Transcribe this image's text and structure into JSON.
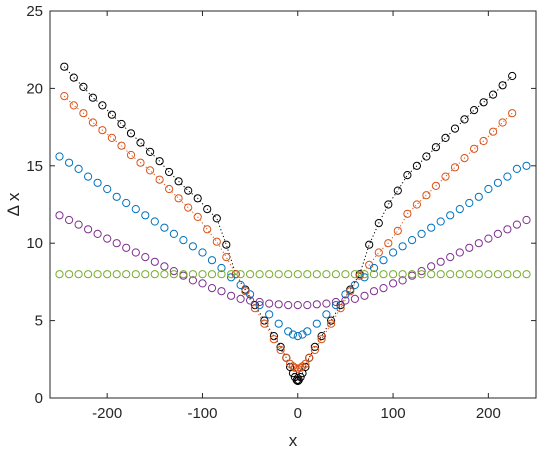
{
  "chart_data": {
    "type": "scatter",
    "xlabel": "x",
    "ylabel": "Δ x",
    "xlim": [
      -260,
      250
    ],
    "ylim": [
      0,
      25
    ],
    "xticks": [
      -200,
      -100,
      0,
      100,
      200
    ],
    "yticks": [
      0,
      5,
      10,
      15,
      20,
      25
    ],
    "xtick_labels": [
      "-200",
      "-100",
      "0",
      "100",
      "200"
    ],
    "ytick_labels": [
      "0",
      "5",
      "10",
      "15",
      "20",
      "25"
    ],
    "grid": false,
    "legend": "none",
    "series": [
      {
        "color": "#000000",
        "marker": "circle",
        "line": "dotted",
        "points": [
          [
            -245,
            21.4
          ],
          [
            -235,
            20.7
          ],
          [
            -225,
            20.1
          ],
          [
            -215,
            19.4
          ],
          [
            -205,
            18.9
          ],
          [
            -195,
            18.3
          ],
          [
            -185,
            17.7
          ],
          [
            -175,
            17.1
          ],
          [
            -165,
            16.5
          ],
          [
            -155,
            15.9
          ],
          [
            -145,
            15.3
          ],
          [
            -135,
            14.6
          ],
          [
            -125,
            14.0
          ],
          [
            -115,
            13.4
          ],
          [
            -105,
            12.9
          ],
          [
            -95,
            12.2
          ],
          [
            -85,
            11.6
          ],
          [
            -75,
            9.9
          ],
          [
            -65,
            8.0
          ],
          [
            -55,
            7.0
          ],
          [
            -45,
            6.0
          ],
          [
            -35,
            5.0
          ],
          [
            -25,
            4.0
          ],
          [
            -18,
            3.3
          ],
          [
            -12,
            2.6
          ],
          [
            -8,
            2.0
          ],
          [
            -5,
            1.6
          ],
          [
            -3,
            1.35
          ],
          [
            -1,
            1.15
          ],
          [
            0,
            1.1
          ],
          [
            1,
            1.15
          ],
          [
            3,
            1.35
          ],
          [
            5,
            1.6
          ],
          [
            8,
            2.0
          ],
          [
            12,
            2.6
          ],
          [
            18,
            3.3
          ],
          [
            25,
            4.0
          ],
          [
            35,
            5.0
          ],
          [
            45,
            6.0
          ],
          [
            55,
            7.0
          ],
          [
            65,
            8.0
          ],
          [
            75,
            9.9
          ],
          [
            85,
            11.3
          ],
          [
            95,
            12.5
          ],
          [
            105,
            13.4
          ],
          [
            115,
            14.4
          ],
          [
            125,
            15.0
          ],
          [
            135,
            15.6
          ],
          [
            145,
            16.2
          ],
          [
            155,
            16.8
          ],
          [
            165,
            17.4
          ],
          [
            175,
            18.0
          ],
          [
            185,
            18.6
          ],
          [
            195,
            19.1
          ],
          [
            205,
            19.6
          ],
          [
            215,
            20.2
          ],
          [
            225,
            20.8
          ]
        ]
      },
      {
        "color": "#D95319",
        "marker": "circle",
        "line": "dotted",
        "points": [
          [
            -245,
            19.5
          ],
          [
            -235,
            18.9
          ],
          [
            -225,
            18.4
          ],
          [
            -215,
            17.8
          ],
          [
            -205,
            17.3
          ],
          [
            -195,
            16.8
          ],
          [
            -185,
            16.3
          ],
          [
            -175,
            15.7
          ],
          [
            -165,
            15.2
          ],
          [
            -155,
            14.7
          ],
          [
            -145,
            14.1
          ],
          [
            -135,
            13.5
          ],
          [
            -125,
            12.9
          ],
          [
            -115,
            12.3
          ],
          [
            -105,
            11.7
          ],
          [
            -95,
            10.9
          ],
          [
            -85,
            10.1
          ],
          [
            -75,
            9.1
          ],
          [
            -65,
            8.0
          ],
          [
            -55,
            6.9
          ],
          [
            -45,
            5.8
          ],
          [
            -35,
            4.8
          ],
          [
            -25,
            3.8
          ],
          [
            -18,
            3.1
          ],
          [
            -12,
            2.6
          ],
          [
            -8,
            2.2
          ],
          [
            -5,
            2.05
          ],
          [
            -3,
            1.95
          ],
          [
            0,
            1.9
          ],
          [
            3,
            1.95
          ],
          [
            5,
            2.05
          ],
          [
            8,
            2.2
          ],
          [
            12,
            2.6
          ],
          [
            18,
            3.1
          ],
          [
            25,
            3.8
          ],
          [
            35,
            4.8
          ],
          [
            45,
            5.8
          ],
          [
            55,
            6.9
          ],
          [
            65,
            7.9
          ],
          [
            75,
            8.6
          ],
          [
            85,
            9.4
          ],
          [
            95,
            10.0
          ],
          [
            105,
            10.8
          ],
          [
            115,
            11.9
          ],
          [
            125,
            12.5
          ],
          [
            135,
            13.1
          ],
          [
            145,
            13.7
          ],
          [
            155,
            14.3
          ],
          [
            165,
            14.9
          ],
          [
            175,
            15.5
          ],
          [
            185,
            16.1
          ],
          [
            195,
            16.6
          ],
          [
            205,
            17.2
          ],
          [
            215,
            17.8
          ],
          [
            225,
            18.4
          ]
        ]
      },
      {
        "color": "#0072BD",
        "marker": "circle",
        "line": "none",
        "points": [
          [
            -250,
            15.6
          ],
          [
            -240,
            15.2
          ],
          [
            -230,
            14.8
          ],
          [
            -220,
            14.3
          ],
          [
            -210,
            13.9
          ],
          [
            -200,
            13.5
          ],
          [
            -190,
            13.0
          ],
          [
            -180,
            12.6
          ],
          [
            -170,
            12.2
          ],
          [
            -160,
            11.8
          ],
          [
            -150,
            11.4
          ],
          [
            -140,
            11.0
          ],
          [
            -130,
            10.6
          ],
          [
            -120,
            10.2
          ],
          [
            -110,
            9.8
          ],
          [
            -100,
            9.4
          ],
          [
            -90,
            8.9
          ],
          [
            -80,
            8.4
          ],
          [
            -70,
            7.8
          ],
          [
            -60,
            7.3
          ],
          [
            -50,
            6.7
          ],
          [
            -40,
            6.0
          ],
          [
            -30,
            5.4
          ],
          [
            -20,
            4.8
          ],
          [
            -10,
            4.3
          ],
          [
            -5,
            4.1
          ],
          [
            0,
            4.0
          ],
          [
            5,
            4.1
          ],
          [
            10,
            4.3
          ],
          [
            20,
            4.8
          ],
          [
            30,
            5.4
          ],
          [
            40,
            6.0
          ],
          [
            50,
            6.7
          ],
          [
            60,
            7.3
          ],
          [
            70,
            7.8
          ],
          [
            80,
            8.4
          ],
          [
            90,
            8.9
          ],
          [
            100,
            9.4
          ],
          [
            110,
            9.8
          ],
          [
            120,
            10.2
          ],
          [
            130,
            10.6
          ],
          [
            140,
            11.0
          ],
          [
            150,
            11.4
          ],
          [
            160,
            11.8
          ],
          [
            170,
            12.2
          ],
          [
            180,
            12.6
          ],
          [
            190,
            13.0
          ],
          [
            200,
            13.5
          ],
          [
            210,
            13.9
          ],
          [
            220,
            14.3
          ],
          [
            230,
            14.8
          ],
          [
            240,
            15.0
          ]
        ]
      },
      {
        "color": "#7E2F8E",
        "marker": "circle",
        "line": "none",
        "points": [
          [
            -250,
            11.8
          ],
          [
            -240,
            11.5
          ],
          [
            -230,
            11.2
          ],
          [
            -220,
            10.9
          ],
          [
            -210,
            10.6
          ],
          [
            -200,
            10.3
          ],
          [
            -190,
            10.0
          ],
          [
            -180,
            9.7
          ],
          [
            -170,
            9.4
          ],
          [
            -160,
            9.1
          ],
          [
            -150,
            8.8
          ],
          [
            -140,
            8.5
          ],
          [
            -130,
            8.2
          ],
          [
            -120,
            7.9
          ],
          [
            -110,
            7.6
          ],
          [
            -100,
            7.4
          ],
          [
            -90,
            7.1
          ],
          [
            -80,
            6.9
          ],
          [
            -70,
            6.6
          ],
          [
            -60,
            6.4
          ],
          [
            -50,
            6.3
          ],
          [
            -40,
            6.2
          ],
          [
            -30,
            6.1
          ],
          [
            -20,
            6.05
          ],
          [
            -10,
            6.0
          ],
          [
            0,
            6.0
          ],
          [
            10,
            6.0
          ],
          [
            20,
            6.05
          ],
          [
            30,
            6.1
          ],
          [
            40,
            6.2
          ],
          [
            50,
            6.3
          ],
          [
            60,
            6.4
          ],
          [
            70,
            6.6
          ],
          [
            80,
            6.9
          ],
          [
            90,
            7.1
          ],
          [
            100,
            7.4
          ],
          [
            110,
            7.6
          ],
          [
            120,
            7.9
          ],
          [
            130,
            8.2
          ],
          [
            140,
            8.5
          ],
          [
            150,
            8.8
          ],
          [
            160,
            9.1
          ],
          [
            170,
            9.4
          ],
          [
            180,
            9.7
          ],
          [
            190,
            10.0
          ],
          [
            200,
            10.3
          ],
          [
            210,
            10.6
          ],
          [
            220,
            10.9
          ],
          [
            230,
            11.2
          ],
          [
            240,
            11.5
          ]
        ]
      },
      {
        "color": "#77AC30",
        "marker": "circle",
        "line": "none",
        "points": [
          [
            -250,
            8.0
          ],
          [
            -240,
            8.0
          ],
          [
            -230,
            8.0
          ],
          [
            -220,
            8.0
          ],
          [
            -210,
            8.0
          ],
          [
            -200,
            8.0
          ],
          [
            -190,
            8.0
          ],
          [
            -180,
            8.0
          ],
          [
            -170,
            8.0
          ],
          [
            -160,
            8.0
          ],
          [
            -150,
            8.0
          ],
          [
            -140,
            8.0
          ],
          [
            -130,
            8.0
          ],
          [
            -120,
            8.0
          ],
          [
            -110,
            8.0
          ],
          [
            -100,
            8.0
          ],
          [
            -90,
            8.0
          ],
          [
            -80,
            8.0
          ],
          [
            -70,
            8.0
          ],
          [
            -60,
            8.0
          ],
          [
            -50,
            8.0
          ],
          [
            -40,
            8.0
          ],
          [
            -30,
            8.0
          ],
          [
            -20,
            8.0
          ],
          [
            -10,
            8.0
          ],
          [
            0,
            8.0
          ],
          [
            10,
            8.0
          ],
          [
            20,
            8.0
          ],
          [
            30,
            8.0
          ],
          [
            40,
            8.0
          ],
          [
            50,
            8.0
          ],
          [
            60,
            8.0
          ],
          [
            70,
            8.0
          ],
          [
            80,
            8.0
          ],
          [
            90,
            8.0
          ],
          [
            100,
            8.0
          ],
          [
            110,
            8.0
          ],
          [
            120,
            8.0
          ],
          [
            130,
            8.0
          ],
          [
            140,
            8.0
          ],
          [
            150,
            8.0
          ],
          [
            160,
            8.0
          ],
          [
            170,
            8.0
          ],
          [
            180,
            8.0
          ],
          [
            190,
            8.0
          ],
          [
            200,
            8.0
          ],
          [
            210,
            8.0
          ],
          [
            220,
            8.0
          ],
          [
            230,
            8.0
          ],
          [
            240,
            8.0
          ]
        ]
      }
    ]
  }
}
